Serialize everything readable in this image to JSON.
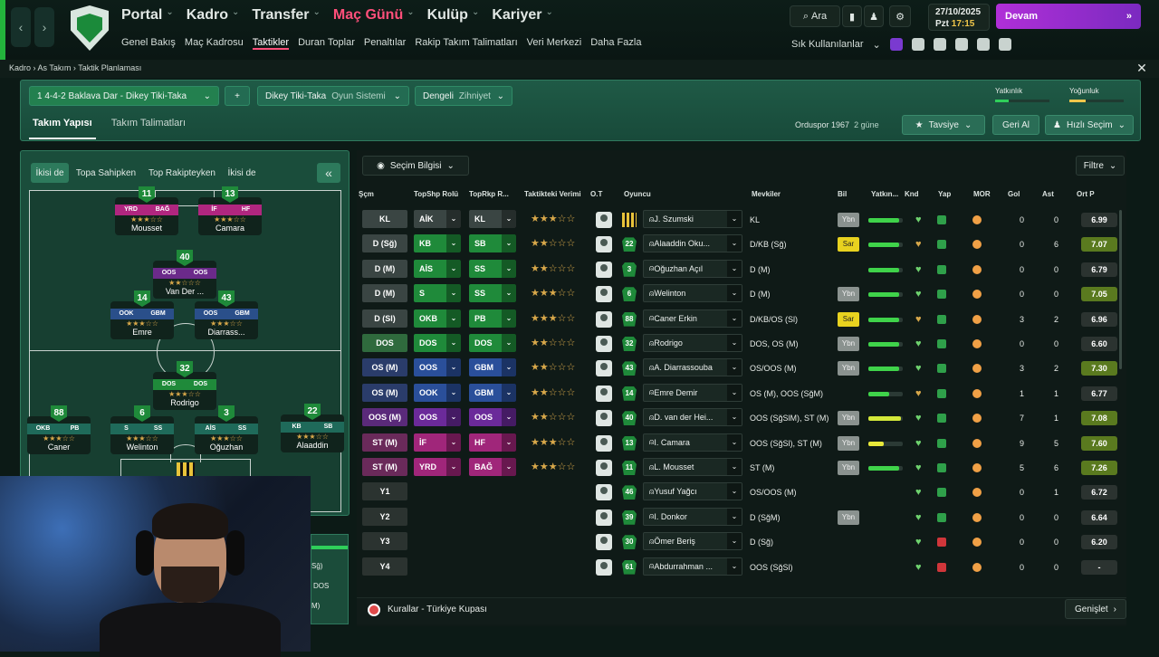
{
  "topnav": {
    "back": "‹",
    "fwd": "›",
    "items": [
      {
        "label": "Portal",
        "active": false
      },
      {
        "label": "Kadro",
        "active": false
      },
      {
        "label": "Transfer",
        "active": false
      },
      {
        "label": "Maç Günü",
        "active": true
      },
      {
        "label": "Kulüp",
        "active": false
      },
      {
        "label": "Kariyer",
        "active": false
      }
    ],
    "sub": [
      "Genel Bakış",
      "Maç Kadrosu",
      "Taktikler",
      "Duran Toplar",
      "Penaltılar",
      "Rakip Takım Talimatları",
      "Veri Merkezi",
      "Daha Fazla"
    ],
    "sub_active": "Taktikler"
  },
  "tools": {
    "search": "Ara",
    "date": "27/10/2025",
    "day": "Pzt",
    "time": "17:15",
    "continue": "Devam",
    "favorites": "Sık Kullanılanlar"
  },
  "breadcrumb": {
    "a": "Kadro",
    "b": "As Takım",
    "c": "Taktik Planlaması"
  },
  "tactic": {
    "name": "1  4-4-2 Baklava Dar - Dikey Tiki-Taka",
    "style": "Dikey Tiki-Taka",
    "style_sub": "Oyun Sistemi",
    "mentality": "Dengeli",
    "mentality_sub": "Zihniyet",
    "plus": "+",
    "yatkinlik": "Yatkınlık",
    "yogunluk": "Yoğunluk",
    "yatkinlik_level": 0.25,
    "yogunluk_level": 0.3
  },
  "tabs": {
    "team": "Takım Yapısı",
    "instructions": "Takım Talimatları"
  },
  "opponent": {
    "name": "Orduspor 1967",
    "when": "2 güne",
    "advice": "Tavsiye",
    "undo": "Geri Al",
    "quick": "Hızlı Seçim"
  },
  "filters": {
    "both": "İkisi de",
    "inpos": "Topa Sahipken",
    "outpos": "Top Rakipteyken",
    "both2": "İkisi de",
    "collapse": "«"
  },
  "pitch_players": [
    {
      "n": "11",
      "r1": "YRD",
      "r2": "BAĞ",
      "c1": "#b0267f",
      "c2": "#b0267f",
      "stars": "★★★☆☆",
      "name": "Mousset"
    },
    {
      "n": "13",
      "r1": "İF",
      "r2": "HF",
      "c1": "#b0267f",
      "c2": "#b0267f",
      "stars": "★★★☆☆",
      "name": "Camara"
    },
    {
      "n": "40",
      "r1": "OOS",
      "r2": "OOS",
      "c1": "#6b2a8a",
      "c2": "#6b2a8a",
      "stars": "★★☆☆☆",
      "name": "Van Der ..."
    },
    {
      "n": "14",
      "r1": "OOK",
      "r2": "GBM",
      "c1": "#2a4f8a",
      "c2": "#2a4f8a",
      "stars": "★★★☆☆",
      "name": "Emre"
    },
    {
      "n": "43",
      "r1": "OOS",
      "r2": "GBM",
      "c1": "#2a4f8a",
      "c2": "#2a4f8a",
      "stars": "★★★☆☆",
      "name": "Diarrass..."
    },
    {
      "n": "32",
      "r1": "DOS",
      "r2": "DOS",
      "c1": "#1f8a3a",
      "c2": "#1f8a3a",
      "stars": "★★★☆☆",
      "name": "Rodrigo"
    },
    {
      "n": "88",
      "r1": "OKB",
      "r2": "PB",
      "c1": "#1f6a5a",
      "c2": "#1f6a5a",
      "stars": "★★★☆☆",
      "name": "Caner"
    },
    {
      "n": "6",
      "r1": "S",
      "r2": "SS",
      "c1": "#1f6a5a",
      "c2": "#1f6a5a",
      "stars": "★★★☆☆",
      "name": "Welinton"
    },
    {
      "n": "3",
      "r1": "AİS",
      "r2": "SS",
      "c1": "#1f6a5a",
      "c2": "#1f6a5a",
      "stars": "★★★☆☆",
      "name": "Oğuzhan"
    },
    {
      "n": "22",
      "r1": "KB",
      "r2": "SB",
      "c1": "#1f6a5a",
      "c2": "#1f6a5a",
      "stars": "★★★☆☆",
      "name": "Alaaddin"
    }
  ],
  "table": {
    "info": "Seçim Bilgisi",
    "filter": "Filtre",
    "headers": [
      "Şçm",
      "TopShp Rolü",
      "TopRkp R...",
      "Taktikteki Verimi",
      "O.T",
      "Oyuncu",
      "Mevkiler",
      "Bil",
      "Yatkın...",
      "Knd",
      "Yap",
      "MOR",
      "Gol",
      "Ast",
      "Ort P"
    ],
    "rows": [
      {
        "pos": "KL",
        "pc": "#3a4543",
        "r1": "AİK",
        "r1c": "#3a4543",
        "r2": "KL",
        "r2c": "#3a4543",
        "stars": "★★★☆☆",
        "num": "",
        "name": "J. Szumski",
        "mev": "KL",
        "bil": "Ybn",
        "bilc": "#8a928f",
        "yat": 0.9,
        "gol": "0",
        "ast": "0",
        "ort": "6.99",
        "ortc": "#2b3330"
      },
      {
        "pos": "D (Sğ)",
        "pc": "#3a4543",
        "r1": "KB",
        "r1c": "#1f8a3a",
        "r2": "SB",
        "r2c": "#1f8a3a",
        "stars": "★★☆☆☆",
        "num": "22",
        "name": "Alaaddin Oku...",
        "mev": "D/KB (Sğ)",
        "bil": "Sar",
        "bilc": "#e8d21f",
        "yat": 0.9,
        "gol": "0",
        "ast": "6",
        "ort": "7.07",
        "ortc": "#5a7a1f"
      },
      {
        "pos": "D (M)",
        "pc": "#3a4543",
        "r1": "AİS",
        "r1c": "#1f8a3a",
        "r2": "SS",
        "r2c": "#1f8a3a",
        "stars": "★★☆☆☆",
        "num": "3",
        "name": "Oğuzhan Açıl",
        "mev": "D (M)",
        "bil": "",
        "bilc": "",
        "yat": 0.9,
        "gol": "0",
        "ast": "0",
        "ort": "6.79",
        "ortc": "#2b3330"
      },
      {
        "pos": "D (M)",
        "pc": "#3a4543",
        "r1": "S",
        "r1c": "#1f8a3a",
        "r2": "SS",
        "r2c": "#1f8a3a",
        "stars": "★★★☆☆",
        "num": "6",
        "name": "Welinton",
        "mev": "D (M)",
        "bil": "Ybn",
        "bilc": "#8a928f",
        "yat": 0.9,
        "gol": "0",
        "ast": "0",
        "ort": "7.05",
        "ortc": "#5a7a1f"
      },
      {
        "pos": "D (Sl)",
        "pc": "#3a4543",
        "r1": "OKB",
        "r1c": "#1f8a3a",
        "r2": "PB",
        "r2c": "#1f8a3a",
        "stars": "★★★☆☆",
        "num": "88",
        "name": "Caner Erkin",
        "mev": "D/KB/OS (Sl)",
        "bil": "Sar",
        "bilc": "#e8d21f",
        "yat": 0.9,
        "gol": "3",
        "ast": "2",
        "ort": "6.96",
        "ortc": "#2b3330"
      },
      {
        "pos": "DOS",
        "pc": "#2f6a3d",
        "r1": "DOS",
        "r1c": "#1f8a3a",
        "r2": "DOS",
        "r2c": "#1f8a3a",
        "stars": "★★☆☆☆",
        "num": "32",
        "name": "Rodrigo",
        "mev": "DOS, OS (M)",
        "bil": "Ybn",
        "bilc": "#8a928f",
        "yat": 0.9,
        "gol": "0",
        "ast": "0",
        "ort": "6.60",
        "ortc": "#2b3330"
      },
      {
        "pos": "OS (M)",
        "pc": "#2a3c6a",
        "r1": "OOS",
        "r1c": "#2a4f9a",
        "r2": "GBM",
        "r2c": "#2a4f9a",
        "stars": "★★☆☆☆",
        "num": "43",
        "name": "A. Diarrassouba",
        "mev": "OS/OOS (M)",
        "bil": "Ybn",
        "bilc": "#8a928f",
        "yat": 0.9,
        "gol": "3",
        "ast": "2",
        "ort": "7.30",
        "ortc": "#5a7a1f"
      },
      {
        "pos": "OS (M)",
        "pc": "#2a3c6a",
        "r1": "OOK",
        "r1c": "#2a4f9a",
        "r2": "GBM",
        "r2c": "#2a4f9a",
        "stars": "★★☆☆☆",
        "num": "14",
        "name": "Emre Demir",
        "mev": "OS (M), OOS (SğM)",
        "bil": "",
        "bilc": "",
        "yat": 0.6,
        "gol": "1",
        "ast": "1",
        "ort": "6.77",
        "ortc": "#2b3330"
      },
      {
        "pos": "OOS (M)",
        "pc": "#5a2a7a",
        "r1": "OOS",
        "r1c": "#6b2a9a",
        "r2": "OOS",
        "r2c": "#6b2a9a",
        "stars": "★★☆☆☆",
        "num": "40",
        "name": "D. van der Hei...",
        "mev": "OOS (SğSlM), ST (M)",
        "bil": "Ybn",
        "bilc": "#8a928f",
        "yat": 0.95,
        "gol": "7",
        "ast": "1",
        "ort": "7.08",
        "ortc": "#5a7a1f"
      },
      {
        "pos": "ST (M)",
        "pc": "#6a2a5a",
        "r1": "İF",
        "r1c": "#a0267a",
        "r2": "HF",
        "r2c": "#a0267a",
        "stars": "★★★☆☆",
        "num": "13",
        "name": "I. Camara",
        "mev": "OOS (SğSl), ST (M)",
        "bil": "Ybn",
        "bilc": "#8a928f",
        "yat": 0.45,
        "gol": "9",
        "ast": "5",
        "ort": "7.60",
        "ortc": "#5a7a1f"
      },
      {
        "pos": "ST (M)",
        "pc": "#6a2a5a",
        "r1": "YRD",
        "r1c": "#a0267a",
        "r2": "BAĞ",
        "r2c": "#a0267a",
        "stars": "★★★☆☆",
        "num": "11",
        "name": "L. Mousset",
        "mev": "ST (M)",
        "bil": "Ybn",
        "bilc": "#8a928f",
        "yat": 0.9,
        "gol": "5",
        "ast": "6",
        "ort": "7.26",
        "ortc": "#5a7a1f"
      },
      {
        "pos": "Y1",
        "pc": "#2b3330",
        "r1": "",
        "r1c": "",
        "r2": "",
        "r2c": "",
        "stars": "",
        "num": "46",
        "name": "Yusuf Yağcı",
        "mev": "OS/OOS (M)",
        "bil": "",
        "bilc": "",
        "yat": 0,
        "gol": "0",
        "ast": "1",
        "ort": "6.72",
        "ortc": "#2b3330"
      },
      {
        "pos": "Y2",
        "pc": "#2b3330",
        "r1": "",
        "r1c": "",
        "r2": "",
        "r2c": "",
        "stars": "",
        "num": "39",
        "name": "I. Donkor",
        "mev": "D (SğM)",
        "bil": "Ybn",
        "bilc": "#8a928f",
        "yat": 0,
        "gol": "0",
        "ast": "0",
        "ort": "6.64",
        "ortc": "#2b3330"
      },
      {
        "pos": "Y3",
        "pc": "#2b3330",
        "r1": "",
        "r1c": "",
        "r2": "",
        "r2c": "",
        "stars": "",
        "num": "30",
        "name": "Ömer Beriş",
        "mev": "D (Sğ)",
        "bil": "",
        "bilc": "",
        "yat": 0,
        "gol": "0",
        "ast": "0",
        "ort": "6.20",
        "ortc": "#2b3330"
      },
      {
        "pos": "Y4",
        "pc": "#2b3330",
        "r1": "",
        "r1c": "",
        "r2": "",
        "r2c": "",
        "stars": "",
        "num": "61",
        "name": "Abdurrahman ...",
        "mev": "OOS (SğSl)",
        "bil": "",
        "bilc": "",
        "yat": 0,
        "gol": "0",
        "ast": "0",
        "ort": "-",
        "ortc": "#2b3330"
      }
    ]
  },
  "footer": {
    "rules": "Kurallar - Türkiye Kupası",
    "expand": "Genişlet"
  },
  "mini": [
    "Sğ)",
    "DOS",
    "M)"
  ]
}
